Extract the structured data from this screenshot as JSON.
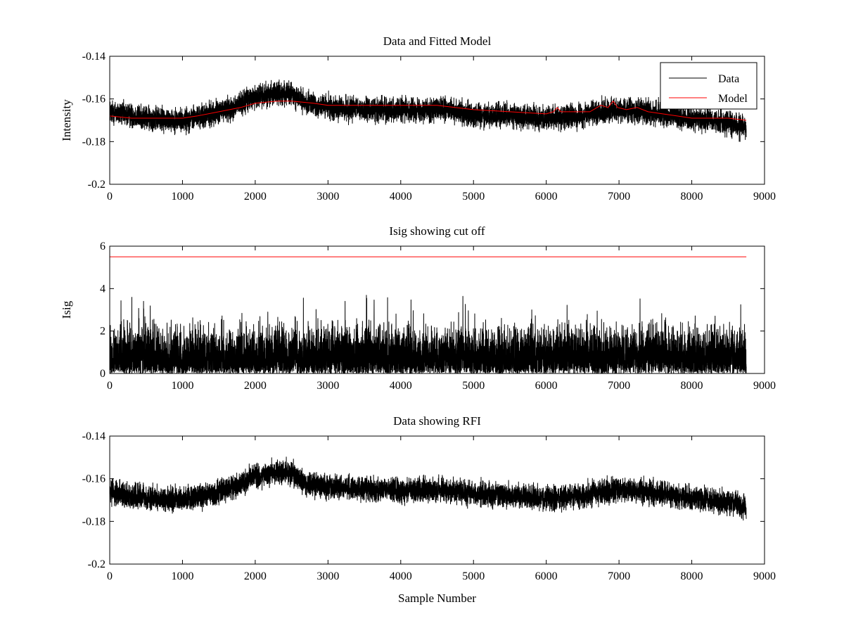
{
  "figure": {
    "background": "#ffffff"
  },
  "chart_data": [
    {
      "type": "line",
      "title": "Data and Fitted Model",
      "xlabel": "",
      "ylabel": "Intensity",
      "xlim": [
        0,
        9000
      ],
      "ylim": [
        -0.2,
        -0.14
      ],
      "y_reversed": true,
      "xticks": [
        0,
        1000,
        2000,
        3000,
        4000,
        5000,
        6000,
        7000,
        8000,
        9000
      ],
      "xtick_labels": [
        "0",
        "1000",
        "2000",
        "3000",
        "4000",
        "5000",
        "6000",
        "7000",
        "8000",
        "9000"
      ],
      "yticks": [
        -0.14,
        -0.16,
        -0.18,
        -0.2
      ],
      "ytick_labels": [
        "-0.14",
        "-0.16",
        "-0.18",
        "-0.2"
      ],
      "legend": {
        "position": "top-right",
        "entries": [
          "Data",
          "Model"
        ]
      },
      "series": [
        {
          "name": "Data",
          "color": "#000000",
          "n_samples": 8750,
          "noise_halfwidth": 0.006,
          "baseline_x": [
            0,
            500,
            1000,
            1300,
            1700,
            2000,
            2300,
            2500,
            2700,
            3000,
            3500,
            4000,
            4500,
            5000,
            5500,
            6000,
            6500,
            6800,
            7000,
            7300,
            7600,
            8000,
            8500,
            8750
          ],
          "baseline_y": [
            -0.166,
            -0.169,
            -0.17,
            -0.168,
            -0.164,
            -0.159,
            -0.157,
            -0.158,
            -0.162,
            -0.164,
            -0.165,
            -0.165,
            -0.165,
            -0.167,
            -0.168,
            -0.169,
            -0.168,
            -0.166,
            -0.165,
            -0.166,
            -0.167,
            -0.169,
            -0.171,
            -0.173
          ]
        },
        {
          "name": "Model",
          "color": "#ff0000",
          "x": [
            0,
            300,
            600,
            1000,
            1200,
            1500,
            1800,
            2000,
            2300,
            2500,
            2800,
            3000,
            3500,
            4000,
            4500,
            5000,
            5500,
            6000,
            6100,
            6150,
            6200,
            6400,
            6600,
            6750,
            6850,
            6920,
            6980,
            7100,
            7250,
            7400,
            7600,
            7800,
            8000,
            8500,
            8750
          ],
          "y": [
            -0.168,
            -0.169,
            -0.169,
            -0.169,
            -0.168,
            -0.166,
            -0.164,
            -0.162,
            -0.161,
            -0.161,
            -0.162,
            -0.163,
            -0.163,
            -0.163,
            -0.163,
            -0.165,
            -0.166,
            -0.167,
            -0.166,
            -0.164,
            -0.166,
            -0.166,
            -0.166,
            -0.163,
            -0.164,
            -0.161,
            -0.164,
            -0.165,
            -0.164,
            -0.166,
            -0.167,
            -0.168,
            -0.169,
            -0.169,
            -0.17
          ]
        }
      ]
    },
    {
      "type": "line",
      "title": "Isig showing cut off",
      "xlabel": "",
      "ylabel": "Isig",
      "xlim": [
        0,
        9000
      ],
      "ylim": [
        0,
        6
      ],
      "y_reversed": false,
      "xticks": [
        0,
        1000,
        2000,
        3000,
        4000,
        5000,
        6000,
        7000,
        8000,
        9000
      ],
      "xtick_labels": [
        "0",
        "1000",
        "2000",
        "3000",
        "4000",
        "5000",
        "6000",
        "7000",
        "8000",
        "9000"
      ],
      "yticks": [
        0,
        2,
        4,
        6
      ],
      "ytick_labels": [
        "0",
        "2",
        "4",
        "6"
      ],
      "series": [
        {
          "name": "Isig",
          "color": "#000000",
          "n_samples": 8750,
          "typical_max": 2.2,
          "peak_max": 3.7
        },
        {
          "name": "Cut off",
          "color": "#ff0000",
          "x": [
            0,
            8750
          ],
          "y": [
            5.5,
            5.5
          ]
        }
      ]
    },
    {
      "type": "line",
      "title": "Data showing RFI",
      "xlabel": "Sample Number",
      "ylabel": "",
      "xlim": [
        0,
        9000
      ],
      "ylim": [
        -0.2,
        -0.14
      ],
      "y_reversed": true,
      "xticks": [
        0,
        1000,
        2000,
        3000,
        4000,
        5000,
        6000,
        7000,
        8000,
        9000
      ],
      "xtick_labels": [
        "0",
        "1000",
        "2000",
        "3000",
        "4000",
        "5000",
        "6000",
        "7000",
        "8000",
        "9000"
      ],
      "yticks": [
        -0.14,
        -0.16,
        -0.18,
        -0.2
      ],
      "ytick_labels": [
        "-0.14",
        "-0.16",
        "-0.18",
        "-0.2"
      ],
      "series": [
        {
          "name": "Data",
          "color": "#000000",
          "n_samples": 8750,
          "noise_halfwidth": 0.006,
          "baseline_x": [
            0,
            500,
            1000,
            1300,
            1700,
            2000,
            2300,
            2500,
            2700,
            3000,
            3500,
            4000,
            4500,
            5000,
            5500,
            6000,
            6500,
            6800,
            7000,
            7300,
            7600,
            8000,
            8500,
            8750
          ],
          "baseline_y": [
            -0.166,
            -0.169,
            -0.17,
            -0.168,
            -0.164,
            -0.159,
            -0.157,
            -0.158,
            -0.162,
            -0.164,
            -0.165,
            -0.165,
            -0.165,
            -0.167,
            -0.168,
            -0.169,
            -0.168,
            -0.166,
            -0.165,
            -0.166,
            -0.167,
            -0.169,
            -0.171,
            -0.173
          ]
        }
      ]
    }
  ]
}
